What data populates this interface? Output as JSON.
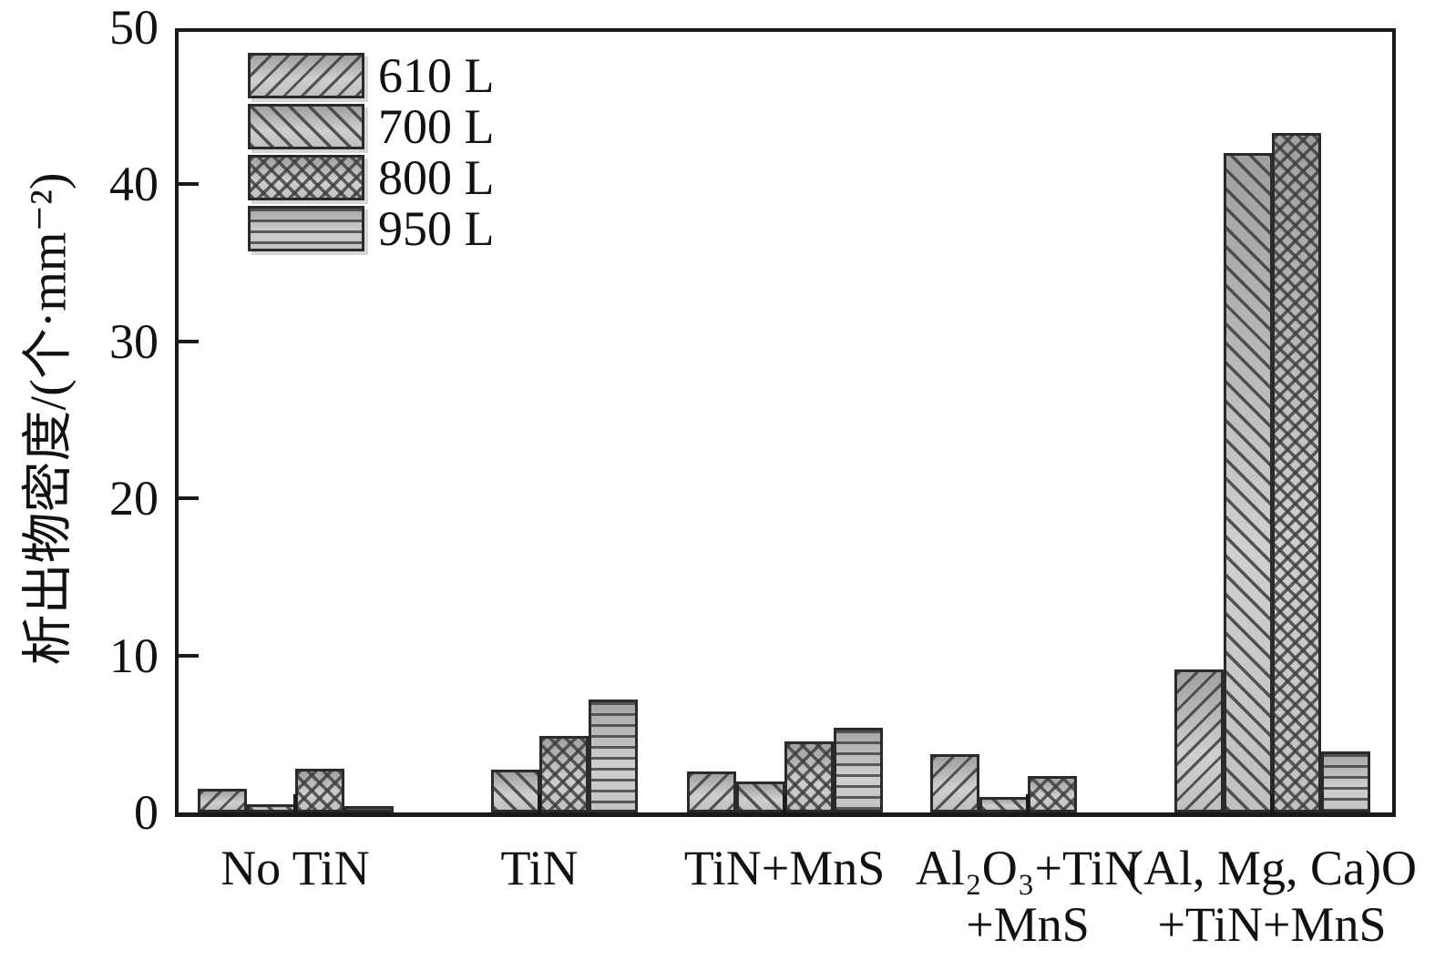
{
  "chart_data": {
    "type": "bar",
    "title": "",
    "ylabel": "析出物密度/(个·mm⁻²)",
    "xlabel": "",
    "ylim": [
      0,
      50
    ],
    "yticks": [
      0,
      10,
      20,
      30,
      40,
      50
    ],
    "grid": false,
    "legend_position": "upper-left-inside",
    "categories": [
      {
        "label": "No TiN",
        "lines": [
          "No TiN"
        ]
      },
      {
        "label": "TiN",
        "lines": [
          "TiN"
        ]
      },
      {
        "label": "TiN+MnS",
        "lines": [
          "TiN+MnS"
        ]
      },
      {
        "label": "Al₂O₃+TiN+MnS",
        "lines": [
          "Al₂O₃+TiN",
          "+MnS"
        ]
      },
      {
        "label": "(Al, Mg, Ca)O+TiN+MnS",
        "lines": [
          "(Al, Mg, Ca)O",
          "+TiN+MnS"
        ]
      }
    ],
    "series": [
      {
        "name": "610 L",
        "hatch": "diagonal-right",
        "values": [
          1.5,
          0,
          2.6,
          3.7,
          9.1
        ]
      },
      {
        "name": "700 L",
        "hatch": "diagonal-left",
        "values": [
          0.5,
          2.7,
          2.0,
          1.0,
          42.0
        ]
      },
      {
        "name": "800 L",
        "hatch": "crosshatch",
        "values": [
          2.8,
          4.9,
          4.5,
          2.3,
          43.3
        ]
      },
      {
        "name": "950 L",
        "hatch": "horizontal",
        "values": [
          0.4,
          7.2,
          5.4,
          0,
          3.9
        ]
      }
    ]
  }
}
